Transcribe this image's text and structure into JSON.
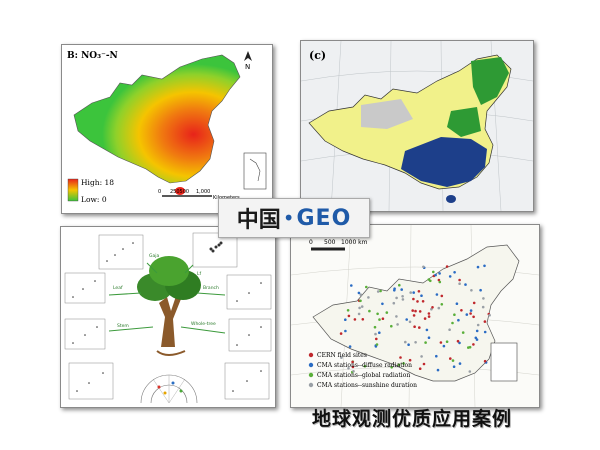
{
  "panel_a": {
    "title": "B: NO₃⁻-N",
    "legend_high": "High: 18",
    "legend_low": "Low: 0",
    "scale_labels": [
      "0",
      "250500",
      "1,000"
    ],
    "scale_unit": "Kilometers",
    "north": "N",
    "colors": {
      "high": "#e8231a",
      "mid": "#f5b400",
      "low": "#3cc43c"
    }
  },
  "panel_c": {
    "label": "(c)",
    "colors": {
      "forest": "#1d3f8a",
      "crop": "#f1f18a",
      "green": "#2e9a34",
      "barren": "#c9c9c9"
    }
  },
  "logo": {
    "text": "中国",
    "dot": "•",
    "geo": "GEO"
  },
  "panel_d": {
    "arrow_labels": [
      "Gaja",
      "Lf",
      "Leaf",
      "Branch",
      "Whole-tree",
      "Stem"
    ],
    "plots": 9
  },
  "panel_e": {
    "scale_labels": [
      "0",
      "500",
      "1000 km"
    ],
    "legend": [
      {
        "label": "CERN field sites",
        "color": "#c0282d"
      },
      {
        "label": "CMA stations--diffuse radiation",
        "color": "#2b6cc4"
      },
      {
        "label": "CMA stations--global radiation",
        "color": "#5aaf3a"
      },
      {
        "label": "CMA stations--sunshine duration",
        "color": "#9aa0a6"
      }
    ]
  },
  "caption": "地球观测优质应用案例"
}
